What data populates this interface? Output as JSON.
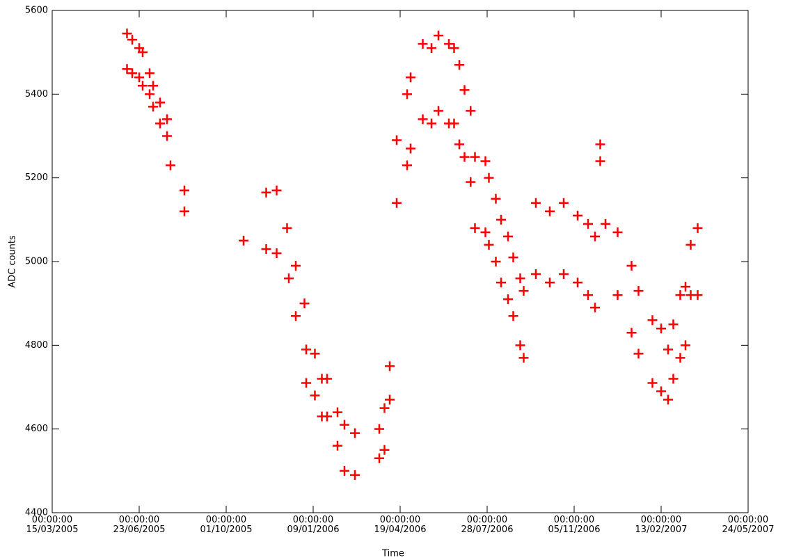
{
  "chart_data": {
    "type": "scatter",
    "x_label": "Time",
    "y_label": "ADC counts",
    "color": "#ff0000",
    "marker": "plus",
    "xlim": [
      "15/03/2005",
      "24/05/2007"
    ],
    "xticks": [
      {
        "value": "15/03/2005",
        "label": "00:00:00\n15/03/2005"
      },
      {
        "value": "23/06/2005",
        "label": "00:00:00\n23/06/2005"
      },
      {
        "value": "01/10/2005",
        "label": "00:00:00\n01/10/2005"
      },
      {
        "value": "09/01/2006",
        "label": "00:00:00\n09/01/2006"
      },
      {
        "value": "19/04/2006",
        "label": "00:00:00\n19/04/2006"
      },
      {
        "value": "28/07/2006",
        "label": "00:00:00\n28/07/2006"
      },
      {
        "value": "05/11/2006",
        "label": "00:00:00\n05/11/2006"
      },
      {
        "value": "13/02/2007",
        "label": "00:00:00\n13/02/2007"
      },
      {
        "value": "24/05/2007",
        "label": "00:00:00\n24/05/2007"
      }
    ],
    "ylim": [
      4400,
      5600
    ],
    "yticks": [
      4400,
      4600,
      4800,
      5000,
      5200,
      5400,
      5600
    ],
    "x": [
      "09/06/2005",
      "09/06/2005",
      "15/06/2005",
      "15/06/2005",
      "23/06/2005",
      "23/06/2005",
      "27/06/2005",
      "27/06/2005",
      "05/07/2005",
      "05/07/2005",
      "09/07/2005",
      "09/07/2005",
      "17/07/2005",
      "17/07/2005",
      "25/07/2005",
      "25/07/2005",
      "29/07/2005",
      "14/08/2005",
      "14/08/2005",
      "21/10/2005",
      "16/11/2005",
      "16/11/2005",
      "28/11/2005",
      "28/11/2005",
      "10/12/2005",
      "12/12/2005",
      "20/12/2005",
      "20/12/2005",
      "30/12/2005",
      "01/01/2006",
      "01/01/2006",
      "11/01/2006",
      "11/01/2006",
      "19/01/2006",
      "19/01/2006",
      "25/01/2006",
      "25/01/2006",
      "06/02/2006",
      "06/02/2006",
      "14/02/2006",
      "14/02/2006",
      "26/02/2006",
      "26/02/2006",
      "26/03/2006",
      "26/03/2006",
      "01/04/2006",
      "01/04/2006",
      "07/04/2006",
      "07/04/2006",
      "15/04/2006",
      "15/04/2006",
      "27/04/2006",
      "27/04/2006",
      "01/05/2006",
      "01/05/2006",
      "15/05/2006",
      "15/05/2006",
      "25/05/2006",
      "25/05/2006",
      "02/06/2006",
      "02/06/2006",
      "14/06/2006",
      "14/06/2006",
      "20/06/2006",
      "20/06/2006",
      "26/06/2006",
      "26/06/2006",
      "02/07/2006",
      "02/07/2006",
      "09/07/2006",
      "09/07/2006",
      "14/07/2006",
      "14/07/2006",
      "26/07/2006",
      "26/07/2006",
      "30/07/2006",
      "30/07/2006",
      "07/08/2006",
      "07/08/2006",
      "13/08/2006",
      "13/08/2006",
      "21/08/2006",
      "21/08/2006",
      "27/08/2006",
      "27/08/2006",
      "04/09/2006",
      "04/09/2006",
      "08/09/2006",
      "08/09/2006",
      "22/09/2006",
      "22/09/2006",
      "08/10/2006",
      "08/10/2006",
      "24/10/2006",
      "24/10/2006",
      "09/11/2006",
      "09/11/2006",
      "21/11/2006",
      "21/11/2006",
      "29/11/2006",
      "29/11/2006",
      "05/12/2006",
      "05/12/2006",
      "11/12/2006",
      "25/12/2006",
      "25/12/2006",
      "10/01/2007",
      "10/01/2007",
      "18/01/2007",
      "18/01/2007",
      "03/02/2007",
      "03/02/2007",
      "13/02/2007",
      "13/02/2007",
      "21/02/2007",
      "21/02/2007",
      "27/02/2007",
      "27/02/2007",
      "07/03/2007",
      "07/03/2007",
      "13/03/2007",
      "13/03/2007",
      "19/03/2007",
      "19/03/2007",
      "27/03/2007",
      "27/03/2007"
    ],
    "y": [
      5545,
      5460,
      5530,
      5450,
      5510,
      5440,
      5500,
      5420,
      5450,
      5400,
      5420,
      5370,
      5380,
      5330,
      5340,
      5300,
      5230,
      5170,
      5120,
      5050,
      5165,
      5030,
      5170,
      5020,
      5080,
      4960,
      4990,
      4870,
      4900,
      4790,
      4710,
      4780,
      4680,
      4720,
      4630,
      4720,
      4630,
      4640,
      4560,
      4610,
      4500,
      4590,
      4490,
      4530,
      4600,
      4550,
      4650,
      4670,
      4750,
      5290,
      5140,
      5400,
      5230,
      5440,
      5270,
      5520,
      5340,
      5510,
      5330,
      5540,
      5360,
      5520,
      5330,
      5510,
      5330,
      5470,
      5280,
      5410,
      5250,
      5360,
      5190,
      5250,
      5080,
      5240,
      5070,
      5200,
      5040,
      5150,
      5000,
      5100,
      4950,
      5060,
      4910,
      5010,
      4870,
      4960,
      4800,
      4930,
      4770,
      5140,
      4970,
      5120,
      4950,
      5140,
      4970,
      5110,
      4950,
      5090,
      4920,
      5060,
      4890,
      5240,
      5280,
      5090,
      5070,
      4920,
      4990,
      4830,
      4930,
      4780,
      4860,
      4710,
      4840,
      4690,
      4790,
      4670,
      4850,
      4720,
      4920,
      4770,
      4940,
      4800,
      5040,
      4920,
      5080,
      4920
    ]
  }
}
